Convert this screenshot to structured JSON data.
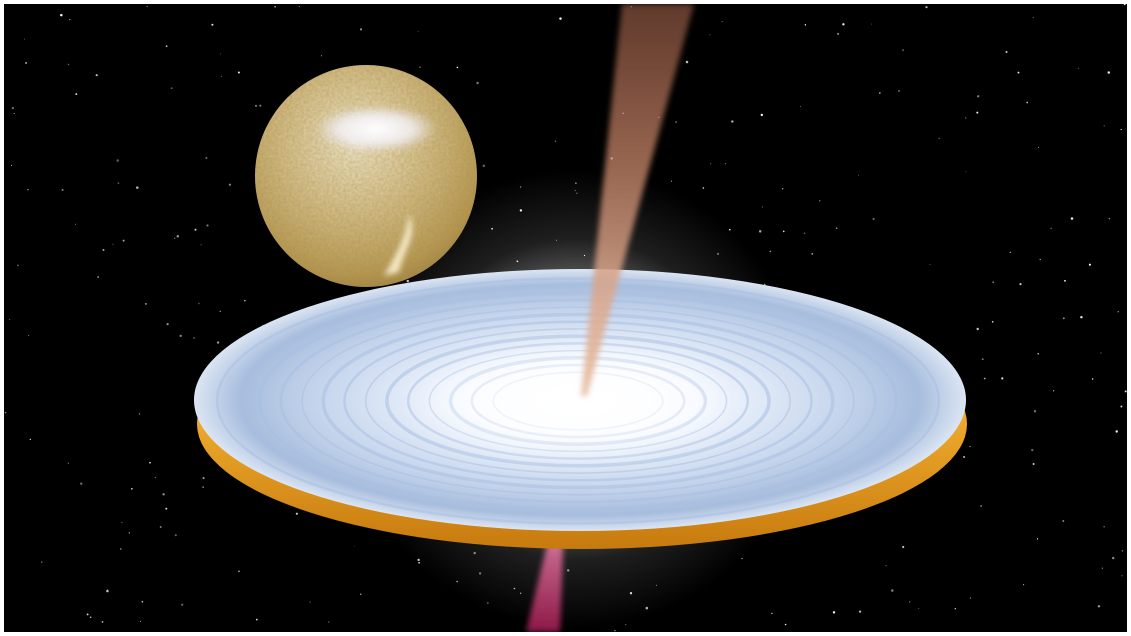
{
  "scene": {
    "subject": "companion-star-accretion-disk",
    "colors": {
      "space": "#000000",
      "star_light": "#f6eed2",
      "star_mid": "#d9c38c",
      "star_dark": "#9b7d3e",
      "disk_white": "#ffffff",
      "disk_blue": "#b8cce6",
      "disk_rim": "#e49c1c",
      "jet_top": "#c9876a",
      "jet_bottom": "#c0306a"
    }
  }
}
